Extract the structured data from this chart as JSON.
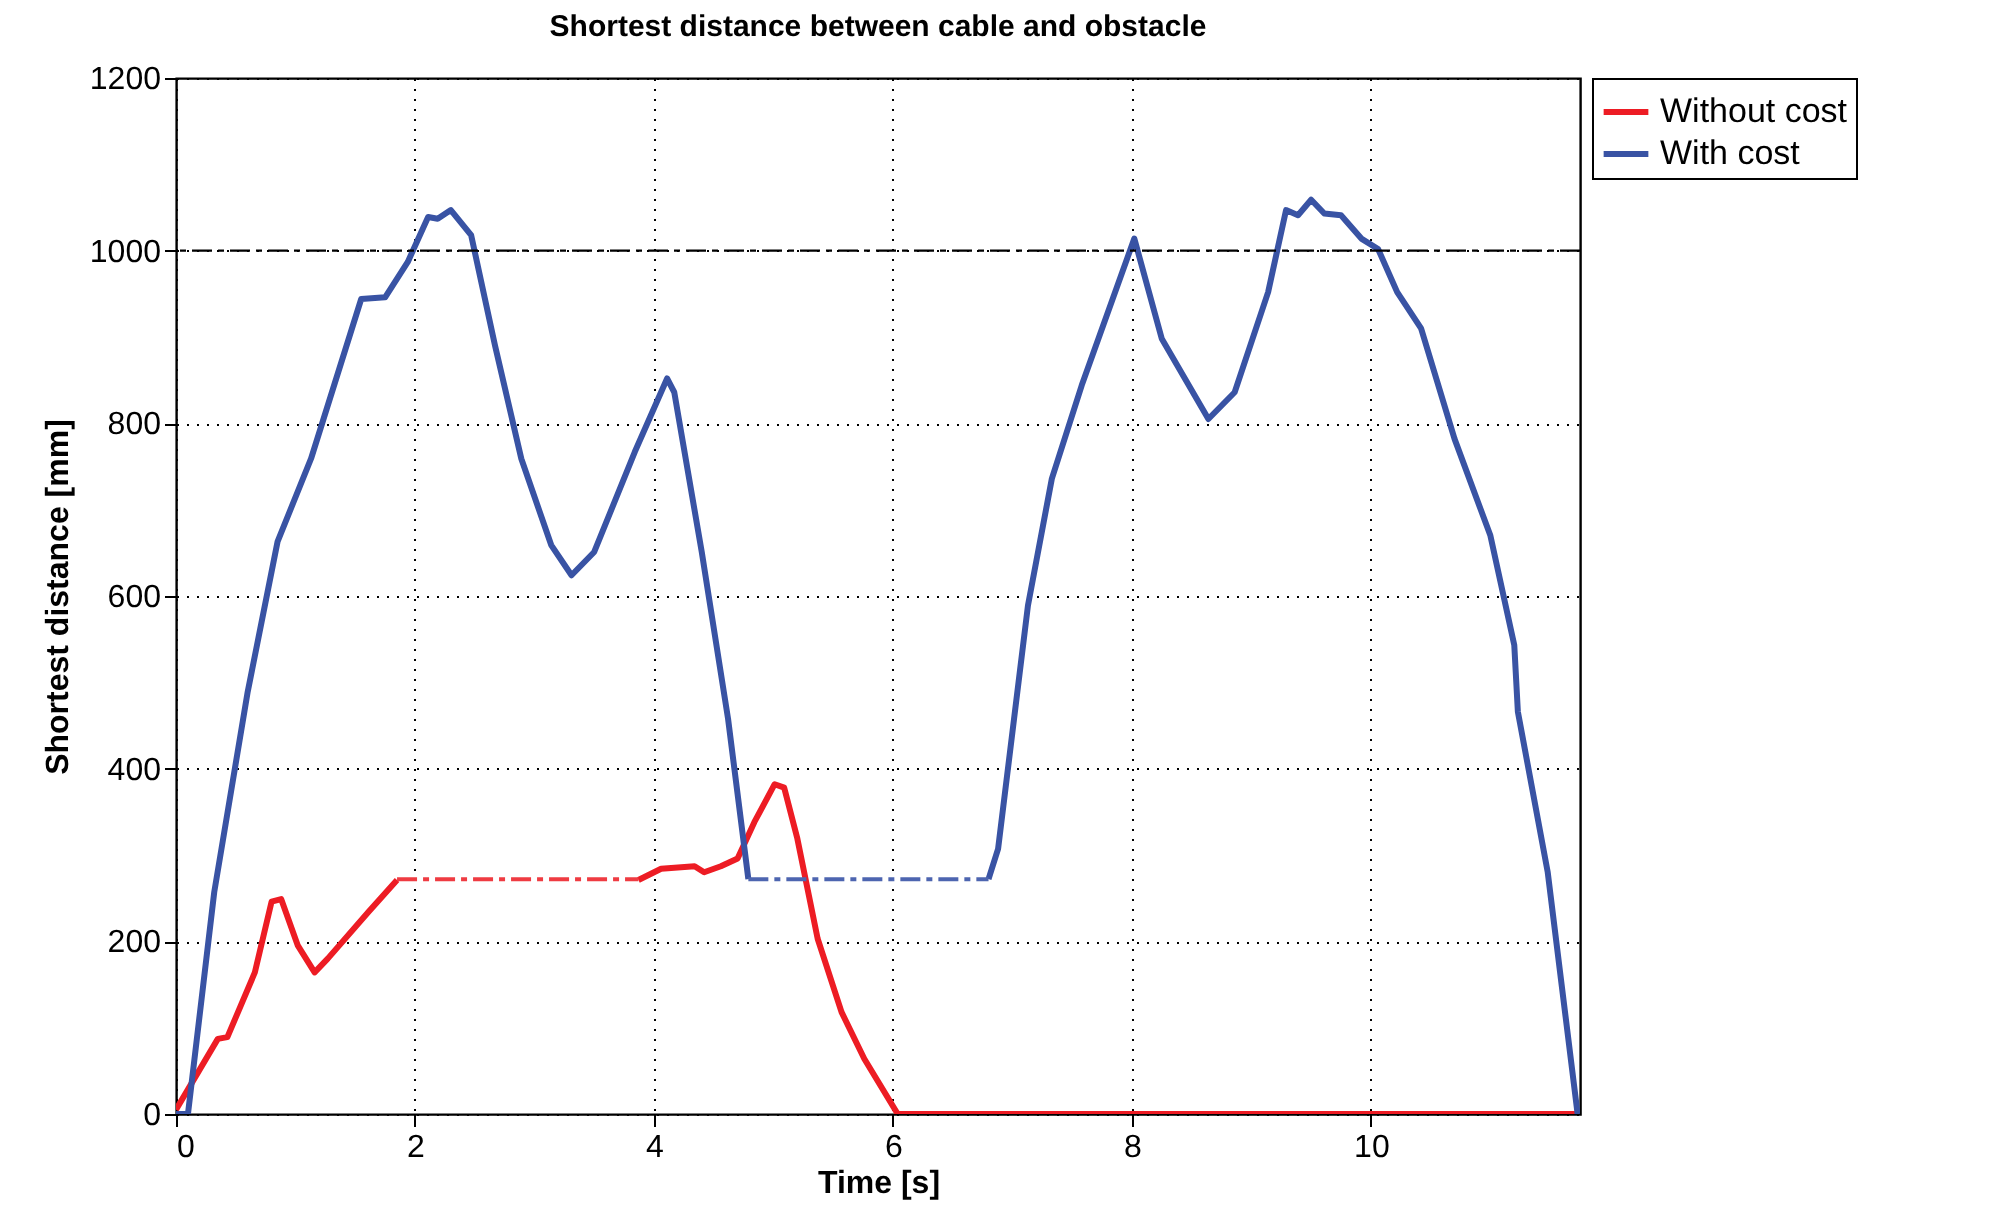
{
  "chart_data": {
    "type": "line",
    "title": "Shortest distance between cable and obstacle",
    "xlabel": "Time [s]",
    "ylabel": "Shortest distance [mm]",
    "xlim": [
      0,
      11.75
    ],
    "xticks": [
      0,
      2,
      4,
      6,
      8,
      10
    ],
    "ylim": [
      0,
      1200
    ],
    "yticks": [
      0,
      200,
      400,
      600,
      800,
      1000,
      1200
    ],
    "grid": true,
    "legend": "top right",
    "line_style": "solid",
    "series": [
      {
        "name": "Without cost",
        "color": "#ed1c24",
        "x": [
          0,
          0.35,
          0.43,
          0.66,
          0.8,
          0.88,
          1.02,
          1.16,
          1.27,
          1.61,
          1.85,
          1.86,
          3.86,
          3.87,
          4.06,
          4.34,
          4.42,
          4.56,
          4.7,
          4.84,
          5.01,
          5.09,
          5.2,
          5.37,
          5.57,
          5.76,
          6.04,
          11.73
        ],
        "values": [
          5,
          87,
          89,
          164,
          246,
          249,
          195,
          164,
          180,
          234,
          271,
          null,
          null,
          271,
          284,
          287,
          280,
          287,
          296,
          338,
          382,
          378,
          319,
          203,
          118,
          64,
          0,
          0
        ]
      },
      {
        "name": "With cost",
        "color": "#3953a4",
        "x": [
          0,
          0.1,
          0.32,
          0.6,
          0.85,
          1.13,
          1.55,
          1.75,
          1.94,
          2.11,
          2.19,
          2.3,
          2.47,
          2.67,
          2.89,
          3.14,
          3.31,
          3.5,
          3.84,
          4.11,
          4.17,
          4.4,
          4.62,
          4.79,
          4.8,
          6.79,
          6.8,
          6.88,
          7.13,
          7.33,
          7.58,
          8.02,
          8.25,
          8.64,
          8.86,
          9.14,
          9.29,
          9.39,
          9.5,
          9.61,
          9.75,
          9.92,
          10.06,
          10.22,
          10.42,
          10.7,
          11.0,
          11.2,
          11.23,
          11.48,
          11.73
        ],
        "values": [
          0,
          0,
          257,
          489,
          663,
          759,
          944,
          946,
          987,
          1039,
          1037,
          1047,
          1018,
          890,
          759,
          659,
          624,
          651,
          767,
          852,
          836,
          651,
          458,
          272,
          null,
          null,
          272,
          307,
          589,
          736,
          844,
          1014,
          898,
          805,
          836,
          952,
          1047,
          1041,
          1059,
          1043,
          1041,
          1014,
          1002,
          952,
          910,
          782,
          670,
          543,
          466,
          280,
          0
        ]
      },
      {
        "color": "#ef3b42",
        "line_style": "dashed",
        "x": [
          1.85,
          2.86,
          3.87
        ],
        "values": [
          272,
          272,
          272
        ]
      },
      {
        "color": "#4d65b0",
        "line_style": "dashed",
        "x": [
          4.79,
          5.8,
          6.8
        ],
        "values": [
          272,
          272,
          272
        ]
      }
    ],
    "ref_lines": [
      {
        "axis": "y",
        "value": 1000,
        "color": "#000000",
        "line_style": "dashed"
      }
    ]
  }
}
